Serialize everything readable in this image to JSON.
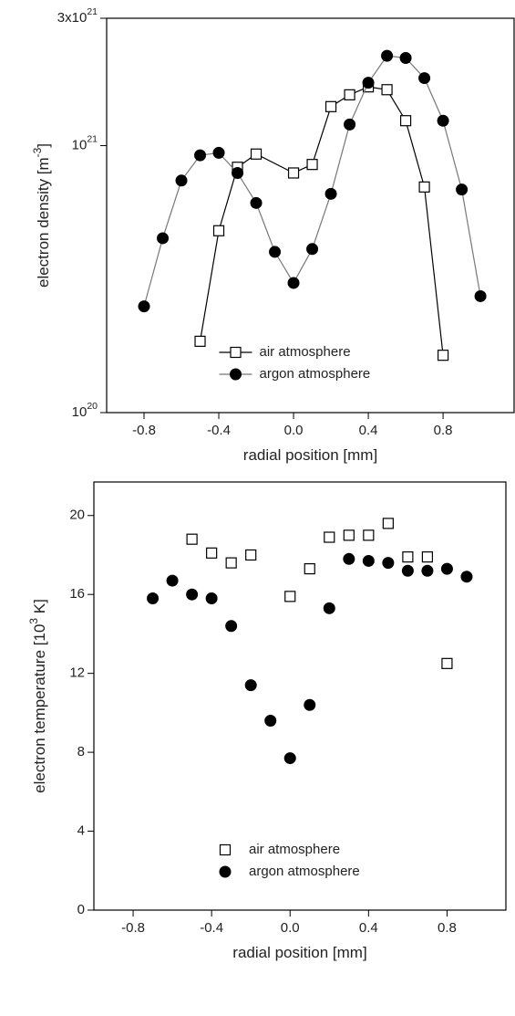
{
  "chart_data": [
    {
      "type": "line",
      "xlabel": "radial position [mm]",
      "ylabel": "electron density [m^{-3}]",
      "yscale": "log",
      "xlim": [
        -1.0,
        1.18
      ],
      "ylim": [
        1e+20,
        3e+21
      ],
      "xticks": [
        -0.8,
        -0.4,
        {
          "value": 0,
          "label": "0.0"
        },
        0.4,
        0.8
      ],
      "yticks": [
        {
          "value": 1e+20,
          "label": "10^{20}"
        },
        {
          "value": 1e+21,
          "label": "10^{21}"
        },
        {
          "value": 3e+21,
          "label": "3x10^{21}"
        }
      ],
      "legend": "lower center",
      "series": [
        {
          "name": "air atmosphere",
          "color": "#000000",
          "marker": "square",
          "x": [
            -0.5,
            -0.4,
            -0.3,
            -0.2,
            0.0,
            0.1,
            0.2,
            0.3,
            0.4,
            0.5,
            0.6,
            0.7,
            0.8
          ],
          "values": [
            1.85e+20,
            4.8e+20,
            8.3e+20,
            9.3e+20,
            7.9e+20,
            8.5e+20,
            1.4e+21,
            1.55e+21,
            1.66e+21,
            1.62e+21,
            1.24e+21,
            7e+20,
            1.64e+20
          ]
        },
        {
          "name": "argon atmosphere",
          "color": "#000000",
          "marker": "circle",
          "x": [
            -0.8,
            -0.7,
            -0.6,
            -0.5,
            -0.4,
            -0.3,
            -0.2,
            -0.1,
            0.0,
            0.1,
            0.2,
            0.3,
            0.4,
            0.5,
            0.6,
            0.7,
            0.8,
            0.9,
            1.0
          ],
          "values": [
            2.5e+20,
            4.5e+20,
            7.4e+20,
            9.2e+20,
            9.4e+20,
            7.9e+20,
            6.1e+20,
            4e+20,
            3.06e+20,
            4.1e+20,
            6.6e+20,
            1.2e+21,
            1.72e+21,
            2.17e+21,
            2.13e+21,
            1.79e+21,
            1.24e+21,
            6.85e+20,
            2.73e+20
          ]
        }
      ]
    },
    {
      "type": "scatter",
      "xlabel": "radial position [mm]",
      "ylabel": "electron temperature [10^{3} K]",
      "xlim": [
        -1.0,
        1.1
      ],
      "ylim": [
        0,
        21.7
      ],
      "xticks": [
        -0.8,
        -0.4,
        {
          "value": 0,
          "label": "0.0"
        },
        0.4,
        0.8
      ],
      "yticks": [
        0,
        4,
        8,
        12,
        16,
        20
      ],
      "legend": "lower center",
      "series": [
        {
          "name": "air atmosphere",
          "color": "#000000",
          "marker": "square",
          "x": [
            -0.5,
            -0.4,
            -0.3,
            -0.2,
            0.0,
            0.1,
            0.2,
            0.3,
            0.4,
            0.5,
            0.6,
            0.7,
            0.8
          ],
          "values": [
            18.8,
            18.1,
            17.6,
            18.0,
            15.9,
            17.3,
            18.9,
            19.0,
            19.0,
            19.6,
            17.9,
            17.9,
            12.5
          ]
        },
        {
          "name": "argon atmosphere",
          "color": "#000000",
          "marker": "circle",
          "x": [
            -0.7,
            -0.6,
            -0.5,
            -0.4,
            -0.3,
            -0.2,
            -0.1,
            0.0,
            0.1,
            0.2,
            0.3,
            0.4,
            0.5,
            0.6,
            0.7,
            0.8,
            0.9
          ],
          "values": [
            15.8,
            16.7,
            16.0,
            15.8,
            14.4,
            11.4,
            9.6,
            7.7,
            10.4,
            15.3,
            17.8,
            17.7,
            17.6,
            17.2,
            17.2,
            17.3,
            16.9
          ]
        }
      ]
    }
  ]
}
